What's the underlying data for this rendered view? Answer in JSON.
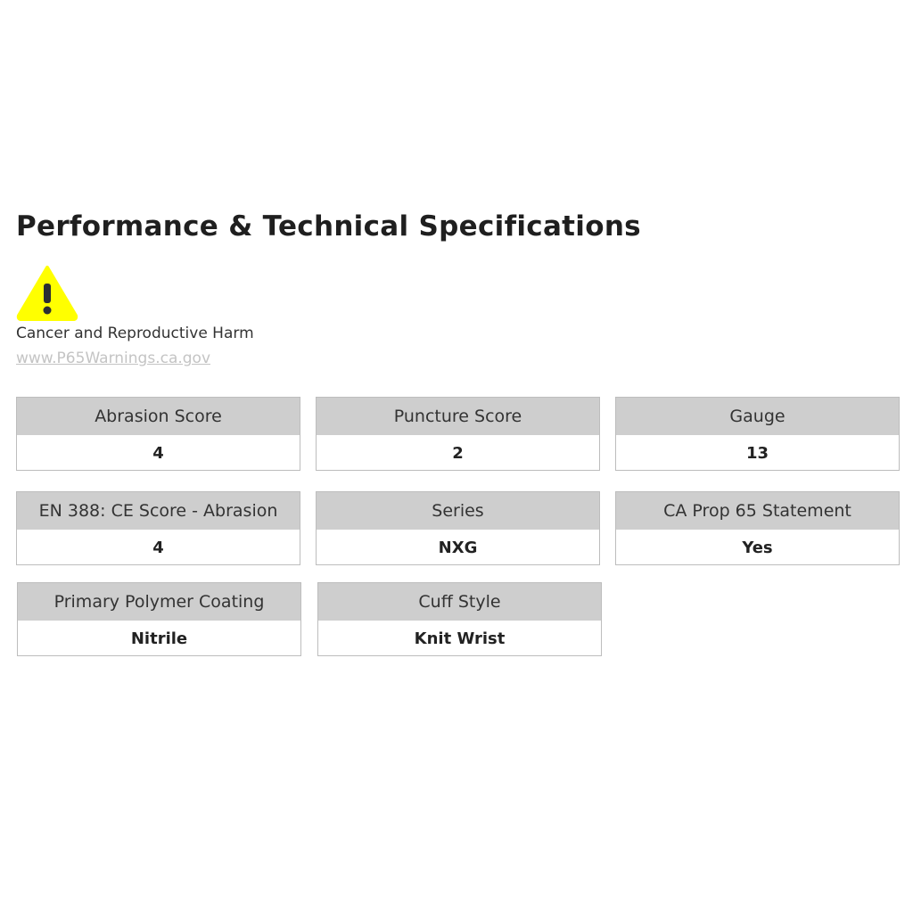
{
  "title": "Performance & Technical Specifications",
  "warning": {
    "icon": "warning-triangle-icon",
    "color": "#ffff00",
    "text": "Cancer and Reproductive Harm",
    "link": "www.P65Warnings.ca.gov"
  },
  "specs": [
    {
      "label": "Abrasion Score",
      "value": "4"
    },
    {
      "label": "Puncture Score",
      "value": "2"
    },
    {
      "label": "Gauge",
      "value": "13"
    },
    {
      "label": "EN 388: CE Score - Abrasion",
      "value": "4"
    },
    {
      "label": "Series",
      "value": "NXG"
    },
    {
      "label": "CA Prop 65 Statement",
      "value": "Yes"
    },
    {
      "label": "Primary Polymer Coating",
      "value": "Nitrile"
    },
    {
      "label": "Cuff Style",
      "value": "Knit Wrist"
    }
  ]
}
